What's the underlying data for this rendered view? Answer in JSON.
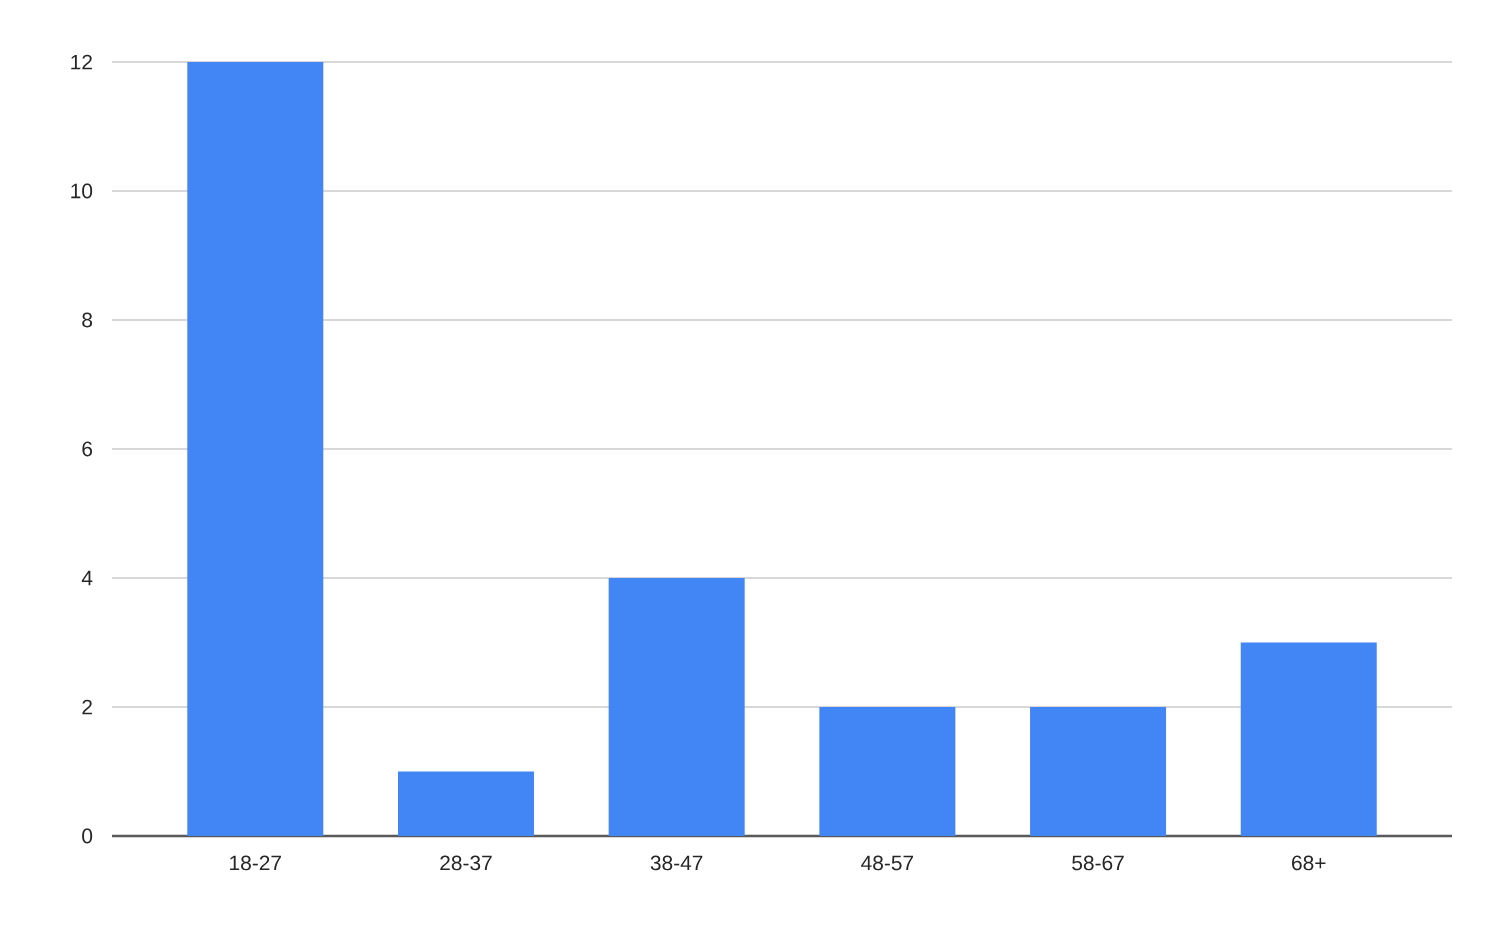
{
  "chart_data": {
    "type": "bar",
    "categories": [
      "18-27",
      "28-37",
      "38-47",
      "48-57",
      "58-67",
      "68+"
    ],
    "values": [
      12,
      1,
      4,
      2,
      2,
      3
    ],
    "color": "#4285f4",
    "ylim": [
      0,
      12
    ],
    "yticks": [
      0,
      2,
      4,
      6,
      8,
      10,
      12
    ],
    "grid": "y"
  }
}
